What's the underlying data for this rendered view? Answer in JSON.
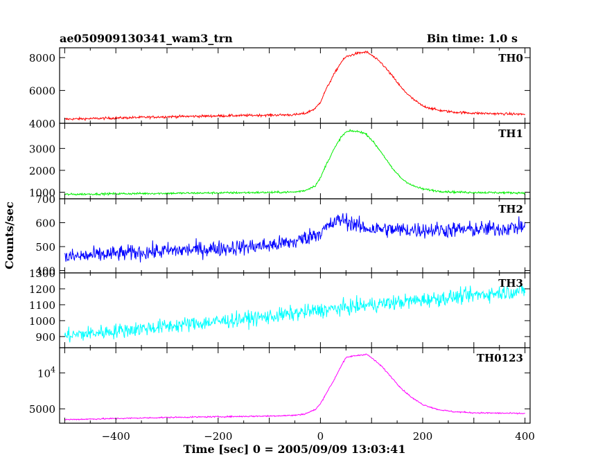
{
  "header": {
    "title": "ae050909130341_wam3_trn",
    "bin_time": "Bin time: 1.0 s"
  },
  "chart_data": {
    "type": "line",
    "xlabel": "Time [sec] 0 = 2005/09/09 13:03:41",
    "ylabel": "Counts/sec",
    "xlim": [
      -510,
      410
    ],
    "x_ticks": [
      -400,
      -200,
      0,
      200,
      400
    ],
    "grid": false,
    "panels": [
      {
        "name": "TH0",
        "color": "#ff0000",
        "ylim": [
          4000,
          8600
        ],
        "yticks": [
          4000,
          6000,
          8000
        ],
        "ytick_labels": [
          "4000",
          "6000",
          "8000"
        ],
        "noise": 70,
        "x": [
          -500,
          -400,
          -300,
          -200,
          -100,
          -50,
          -30,
          -10,
          0,
          10,
          25,
          40,
          50,
          60,
          70,
          80,
          90,
          100,
          120,
          140,
          160,
          180,
          200,
          230,
          260,
          300,
          350,
          400
        ],
        "y": [
          4250,
          4320,
          4400,
          4450,
          4500,
          4520,
          4600,
          4900,
          5300,
          6000,
          6900,
          7700,
          8050,
          8150,
          8250,
          8300,
          8350,
          8150,
          7650,
          6900,
          6100,
          5500,
          5050,
          4800,
          4680,
          4620,
          4580,
          4550
        ]
      },
      {
        "name": "TH1",
        "color": "#00ee00",
        "ylim": [
          700,
          4150
        ],
        "yticks": [
          1000,
          2000,
          3000
        ],
        "ytick_labels": [
          "1000",
          "2000",
          "3000"
        ],
        "noise": 45,
        "x": [
          -500,
          -400,
          -300,
          -200,
          -100,
          -50,
          -30,
          -10,
          0,
          10,
          25,
          40,
          50,
          60,
          70,
          80,
          90,
          100,
          120,
          140,
          160,
          180,
          200,
          230,
          260,
          300,
          350,
          400
        ],
        "y": [
          900,
          930,
          950,
          970,
          990,
          1010,
          1080,
          1300,
          1650,
          2200,
          2900,
          3500,
          3750,
          3800,
          3780,
          3750,
          3650,
          3400,
          2800,
          2100,
          1600,
          1300,
          1150,
          1050,
          1010,
          990,
          980,
          970
        ]
      },
      {
        "name": "TH2",
        "color": "#0000ff",
        "ylim": [
          390,
          700
        ],
        "yticks": [
          400,
          500,
          600,
          700
        ],
        "ytick_labels": [
          "400",
          "500",
          "600",
          "700"
        ],
        "noise": 32,
        "x": [
          -500,
          -400,
          -300,
          -200,
          -100,
          -50,
          -20,
          0,
          20,
          40,
          60,
          80,
          100,
          150,
          200,
          250,
          300,
          350,
          400
        ],
        "y": [
          455,
          470,
          482,
          492,
          505,
          520,
          545,
          560,
          590,
          615,
          600,
          580,
          575,
          570,
          570,
          570,
          572,
          575,
          585
        ]
      },
      {
        "name": "TH3",
        "color": "#00ffff",
        "ylim": [
          830,
          1300
        ],
        "yticks": [
          900,
          1000,
          1100,
          1200,
          1300
        ],
        "ytick_labels": [
          "900",
          "1000",
          "1100",
          "1200",
          "1300"
        ],
        "noise": 45,
        "x": [
          -500,
          -400,
          -300,
          -200,
          -100,
          0,
          100,
          200,
          300,
          400
        ],
        "y": [
          905,
          935,
          965,
          995,
          1025,
          1065,
          1100,
          1130,
          1160,
          1190
        ]
      },
      {
        "name": "TH0123",
        "color": "#ff00ff",
        "ylim": [
          3000,
          13500
        ],
        "yticks": [
          5000,
          10000
        ],
        "ytick_labels": [
          "5000",
          "10^4"
        ],
        "noise": 90,
        "x": [
          -500,
          -400,
          -300,
          -200,
          -100,
          -50,
          -30,
          -10,
          0,
          10,
          25,
          40,
          50,
          60,
          70,
          80,
          90,
          100,
          120,
          140,
          160,
          180,
          200,
          230,
          260,
          300,
          350,
          400
        ],
        "y": [
          3500,
          3650,
          3800,
          3900,
          4000,
          4100,
          4300,
          4900,
          5700,
          7000,
          8800,
          10900,
          12100,
          12300,
          12400,
          12500,
          12600,
          12100,
          10900,
          9300,
          7700,
          6500,
          5600,
          4900,
          4600,
          4450,
          4400,
          4350
        ]
      }
    ]
  }
}
